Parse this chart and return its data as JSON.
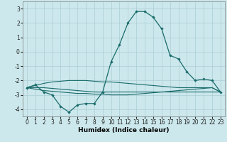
{
  "title": "",
  "xlabel": "Humidex (Indice chaleur)",
  "background_color": "#cce8ec",
  "grid_color": "#aacdd4",
  "line_color": "#1a6b6b",
  "x_values": [
    0,
    1,
    2,
    3,
    4,
    5,
    6,
    7,
    8,
    9,
    10,
    11,
    12,
    13,
    14,
    15,
    16,
    17,
    18,
    19,
    20,
    21,
    22,
    23
  ],
  "series1": [
    -2.5,
    -2.3,
    -2.8,
    -3.0,
    -3.8,
    -4.2,
    -3.7,
    -3.6,
    -3.6,
    -2.8,
    -0.7,
    0.5,
    2.0,
    2.8,
    2.8,
    2.4,
    1.6,
    -0.25,
    -0.5,
    -1.4,
    -2.0,
    -1.9,
    -2.0,
    -2.8
  ],
  "series2": [
    -2.5,
    -2.35,
    -2.2,
    -2.1,
    -2.05,
    -2.0,
    -2.0,
    -2.0,
    -2.05,
    -2.1,
    -2.1,
    -2.15,
    -2.2,
    -2.25,
    -2.3,
    -2.35,
    -2.4,
    -2.45,
    -2.5,
    -2.5,
    -2.5,
    -2.5,
    -2.5,
    -2.8
  ],
  "series3": [
    -2.5,
    -2.5,
    -2.5,
    -2.55,
    -2.6,
    -2.65,
    -2.7,
    -2.75,
    -2.8,
    -2.8,
    -2.8,
    -2.8,
    -2.8,
    -2.8,
    -2.8,
    -2.8,
    -2.8,
    -2.8,
    -2.8,
    -2.8,
    -2.8,
    -2.8,
    -2.8,
    -2.8
  ],
  "series4": [
    -2.5,
    -2.6,
    -2.7,
    -2.75,
    -2.8,
    -2.85,
    -2.9,
    -2.9,
    -2.95,
    -2.95,
    -3.0,
    -3.0,
    -3.0,
    -2.95,
    -2.9,
    -2.85,
    -2.8,
    -2.75,
    -2.7,
    -2.65,
    -2.6,
    -2.55,
    -2.5,
    -2.8
  ],
  "ylim": [
    -4.5,
    3.5
  ],
  "xlim": [
    -0.5,
    23.5
  ],
  "yticks": [
    3,
    2,
    1,
    0,
    -1,
    -2,
    -3,
    -4
  ],
  "xticks": [
    0,
    1,
    2,
    3,
    4,
    5,
    6,
    7,
    8,
    9,
    10,
    11,
    12,
    13,
    14,
    15,
    16,
    17,
    18,
    19,
    20,
    21,
    22,
    23
  ],
  "xlabel_fontsize": 6.5,
  "xlabel_bold": true,
  "tick_fontsize": 5.5,
  "linewidth_main": 0.9,
  "linewidth_envelope": 0.8,
  "markersize": 2.2
}
